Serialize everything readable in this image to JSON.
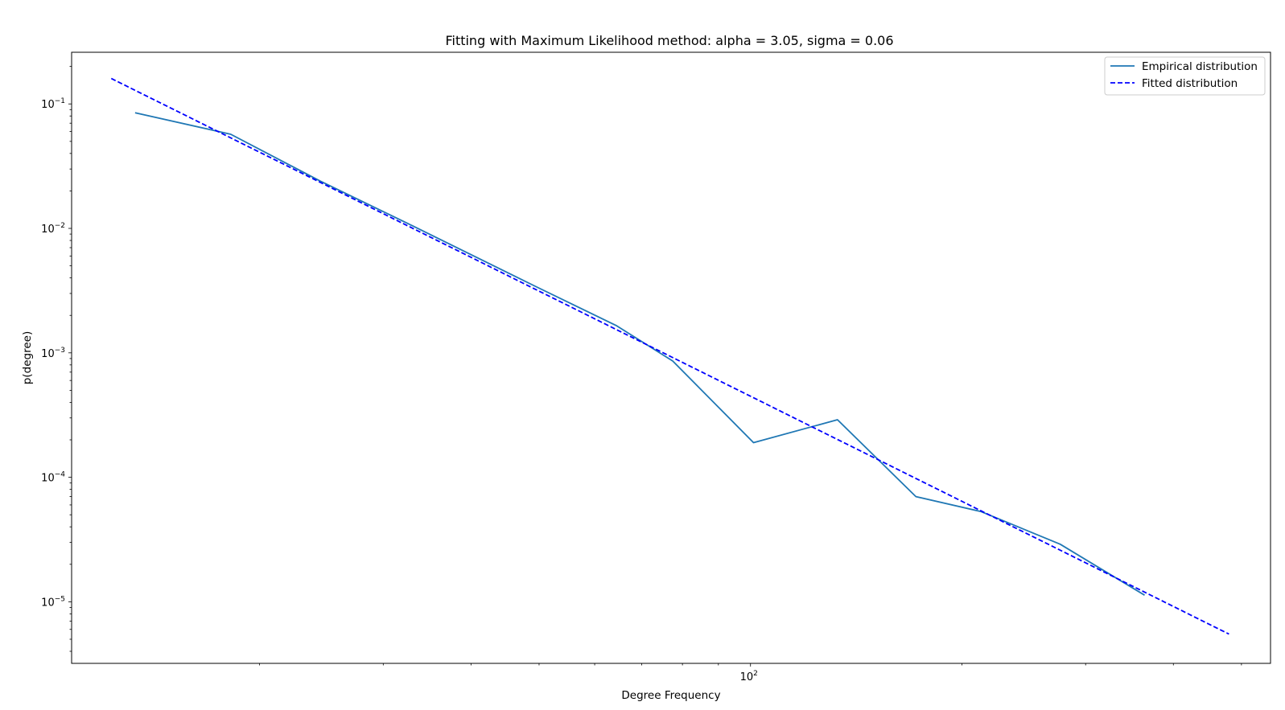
{
  "chart_data": {
    "type": "line",
    "title": "Fitting with Maximum Likelihood method: alpha = 3.05,  sigma = 0.06",
    "xlabel": "Degree Frequency",
    "ylabel": "p(degree)",
    "x_scale": "log",
    "y_scale": "log",
    "xlim": [
      10.8,
      550
    ],
    "ylim": [
      3.2e-06,
      0.26
    ],
    "grid": false,
    "legend_position": "top-right",
    "x_ticks": [
      {
        "value": 100,
        "base": "10",
        "exp": "2"
      }
    ],
    "y_ticks": [
      {
        "value": 0.1,
        "base": "10",
        "exp": "−1"
      },
      {
        "value": 0.01,
        "base": "10",
        "exp": "−2"
      },
      {
        "value": 0.001,
        "base": "10",
        "exp": "−3"
      },
      {
        "value": 0.0001,
        "base": "10",
        "exp": "−4"
      },
      {
        "value": 1e-05,
        "base": "10",
        "exp": "−5"
      }
    ],
    "series": [
      {
        "name": "Empirical distribution",
        "color": "#1f77b4",
        "style": "solid",
        "x": [
          13.3,
          18.2,
          24.4,
          33.0,
          49.5,
          64.5,
          77.5,
          101,
          133,
          172,
          213,
          276,
          364
        ],
        "y": [
          0.085,
          0.057,
          0.024,
          0.0105,
          0.0034,
          0.00165,
          0.00086,
          0.00019,
          0.00029,
          7e-05,
          5.3e-05,
          2.9e-05,
          1.13e-05
        ]
      },
      {
        "name": "Fitted distribution",
        "color": "#0000ff",
        "style": "dashed",
        "x": [
          12.3,
          480
        ],
        "y": [
          0.16,
          5.5e-06
        ]
      }
    ]
  }
}
